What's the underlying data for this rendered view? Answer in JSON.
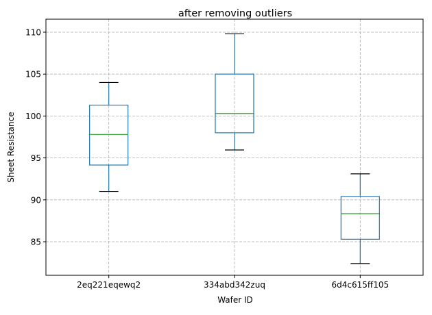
{
  "chart_data": {
    "type": "box",
    "title": "after removing outliers",
    "xlabel": "Wafer ID",
    "ylabel": "Sheet Resistance",
    "ylim": [
      81.0,
      111.55
    ],
    "yticks": [
      85,
      90,
      95,
      100,
      105,
      110
    ],
    "grid": true,
    "categories": [
      "2eq221eqewq2",
      "334abd342zuq",
      "6d4c615ff105"
    ],
    "boxes": [
      {
        "whisker_low": 91.0,
        "q1": 94.15,
        "median": 97.8,
        "q3": 101.3,
        "whisker_high": 104.0
      },
      {
        "whisker_low": 95.95,
        "q1": 98.0,
        "median": 100.3,
        "q3": 105.0,
        "whisker_high": 109.8
      },
      {
        "whisker_low": 82.4,
        "q1": 85.3,
        "median": 88.35,
        "q3": 90.4,
        "whisker_high": 93.1
      }
    ],
    "colors": {
      "box": "#1f77b4",
      "median": "#2ca02c",
      "cap": "#000000",
      "grid": "#b0b0b0"
    }
  }
}
